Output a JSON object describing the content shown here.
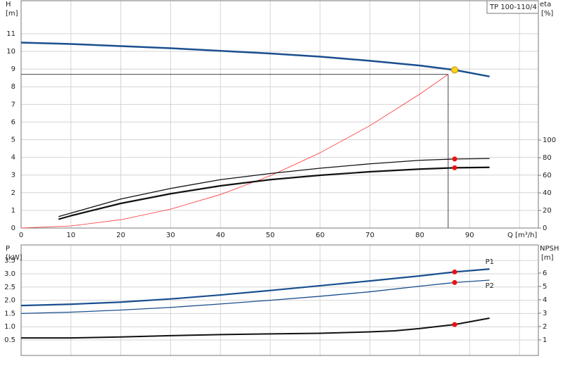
{
  "chart_data": [
    {
      "type": "line",
      "title": "TP 100-110/4",
      "xlabel": "Q [m³/h]",
      "ylabel": "H",
      "yunit": "[m]",
      "y2label": "eta",
      "y2unit": "[%]",
      "xlim": [
        0,
        103.8
      ],
      "xticks": [
        0,
        10,
        20,
        30,
        40,
        50,
        60,
        70,
        80,
        90
      ],
      "xgrid": [
        10,
        20,
        30,
        40,
        50,
        60,
        70,
        80,
        90,
        100
      ],
      "ylim": [
        0,
        12.87
      ],
      "yticks": [
        0,
        1,
        2,
        3,
        4,
        5,
        6,
        7,
        8,
        9,
        10,
        11
      ],
      "y2lim": [
        0,
        258.4
      ],
      "y2ticks": [
        0,
        20,
        40,
        60,
        80,
        100
      ],
      "grid": true,
      "crosshair": {
        "x": 85.7,
        "y": 8.7,
        "color": "#444444"
      },
      "series": [
        {
          "color": "#1a4f8f",
          "width": 2.5,
          "x": [
            0,
            10,
            20,
            30,
            40,
            50,
            60,
            70,
            80,
            87,
            94
          ],
          "values": [
            10.5,
            10.42,
            10.3,
            10.18,
            10.03,
            9.88,
            9.7,
            9.47,
            9.2,
            8.95,
            8.58
          ]
        },
        {
          "color": "#ff3030",
          "width": 0.8,
          "x": [
            0,
            10,
            20,
            30,
            40,
            50,
            60,
            70,
            80,
            85.7
          ],
          "values": [
            0,
            0.12,
            0.47,
            1.07,
            1.9,
            2.96,
            4.26,
            5.8,
            7.58,
            8.7
          ]
        },
        {
          "color": "#111111",
          "width": 1.3,
          "axis": "y2",
          "x": [
            7.5,
            10,
            20,
            30,
            40,
            50,
            60,
            70,
            80,
            87,
            94
          ],
          "values": [
            13,
            17,
            33,
            45,
            55,
            62,
            68,
            73,
            77,
            78.5,
            79
          ]
        },
        {
          "color": "#111111",
          "width": 2.2,
          "axis": "y2",
          "x": [
            7.5,
            10,
            20,
            30,
            40,
            50,
            60,
            70,
            80,
            87,
            94
          ],
          "values": [
            10,
            14,
            28,
            39,
            48,
            55,
            60,
            64,
            67,
            68.5,
            69
          ]
        }
      ],
      "points": [
        {
          "x": 87,
          "y": 8.95,
          "color": "#ffd21a"
        },
        {
          "x": 87,
          "y": 78.5,
          "axis": "y2",
          "color": "#ee1111"
        },
        {
          "x": 87,
          "y": 68.5,
          "axis": "y2",
          "color": "#ee1111"
        }
      ]
    },
    {
      "type": "line",
      "ylabel": "P",
      "yunit": "[kW]",
      "y2label": "NPSH",
      "y2unit": "[m]",
      "xlim": [
        0,
        103.8
      ],
      "xgrid": [
        10,
        20,
        30,
        40,
        50,
        60,
        70,
        80,
        90,
        100
      ],
      "ylim": [
        -0.085,
        4.09
      ],
      "yticks": [
        0.5,
        {
          "value": 1,
          "label": "1.0"
        },
        1.5,
        {
          "value": 2,
          "label": "2.0"
        },
        2.5,
        {
          "value": 3,
          "label": "3.0"
        },
        3.5
      ],
      "y2lim": [
        -0.16,
        8.1
      ],
      "y2ticks": [
        1,
        2,
        3,
        4,
        5,
        6
      ],
      "grid": true,
      "series": [
        {
          "name": "P1",
          "color": "#1a4f8f",
          "width": 2.2,
          "x": [
            0,
            10,
            20,
            30,
            40,
            50,
            60,
            70,
            80,
            87,
            94
          ],
          "values": [
            1.8,
            1.85,
            1.93,
            2.05,
            2.2,
            2.37,
            2.55,
            2.73,
            2.92,
            3.07,
            3.18
          ]
        },
        {
          "name": "P2",
          "color": "#1a4f8f",
          "width": 1.3,
          "x": [
            0,
            10,
            20,
            30,
            40,
            50,
            60,
            70,
            80,
            87,
            94
          ],
          "values": [
            1.5,
            1.55,
            1.63,
            1.73,
            1.86,
            2.0,
            2.15,
            2.32,
            2.53,
            2.67,
            2.76
          ]
        },
        {
          "color": "#111111",
          "width": 2,
          "axis": "y2",
          "x": [
            0,
            10,
            20,
            30,
            40,
            50,
            60,
            70,
            75,
            80,
            87,
            94
          ],
          "values": [
            1.15,
            1.15,
            1.22,
            1.32,
            1.4,
            1.45,
            1.5,
            1.6,
            1.68,
            1.85,
            2.15,
            2.63
          ]
        }
      ],
      "points": [
        {
          "x": 87,
          "y": 3.07,
          "color": "#ee1111"
        },
        {
          "x": 87,
          "y": 2.67,
          "color": "#ee1111"
        },
        {
          "x": 87,
          "y": 2.15,
          "axis": "y2",
          "color": "#ee1111"
        }
      ]
    }
  ]
}
